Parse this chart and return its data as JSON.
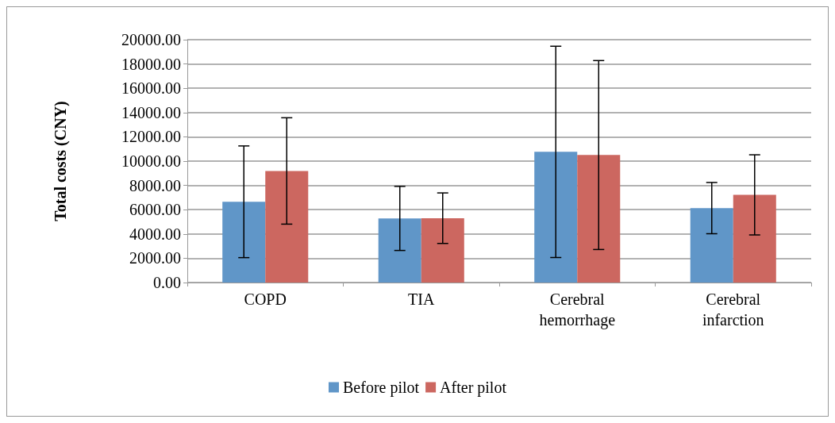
{
  "chart_data": {
    "type": "bar",
    "ylabel": "Total costs (CNY)",
    "categories": [
      "COPD",
      "TIA",
      "Cerebral\nhemorrhage",
      "Cerebral\ninfarction"
    ],
    "series": [
      {
        "name": "Before pilot",
        "color": "#6096c8",
        "values": [
          6650,
          5280,
          10760,
          6130
        ],
        "errors": [
          4600,
          2640,
          8700,
          2110
        ]
      },
      {
        "name": "After pilot",
        "color": "#cc6760",
        "values": [
          9190,
          5300,
          10500,
          7220
        ],
        "errors": [
          4380,
          2080,
          7780,
          3300
        ]
      }
    ],
    "ylim": [
      0,
      20000
    ],
    "yticks": [
      {
        "value": 0,
        "label": "0.00"
      },
      {
        "value": 2000,
        "label": "2000.00"
      },
      {
        "value": 4000,
        "label": "4000.00"
      },
      {
        "value": 6000,
        "label": "6000.00"
      },
      {
        "value": 8000,
        "label": "8000.00"
      },
      {
        "value": 10000,
        "label": "10000.00"
      },
      {
        "value": 12000,
        "label": "12000.00"
      },
      {
        "value": 14000,
        "label": "14000.00"
      },
      {
        "value": 16000,
        "label": "16000.00"
      },
      {
        "value": 18000,
        "label": "18000.00"
      },
      {
        "value": 20000,
        "label": "20000.00"
      }
    ],
    "grid": "y",
    "legend": "bottom"
  }
}
